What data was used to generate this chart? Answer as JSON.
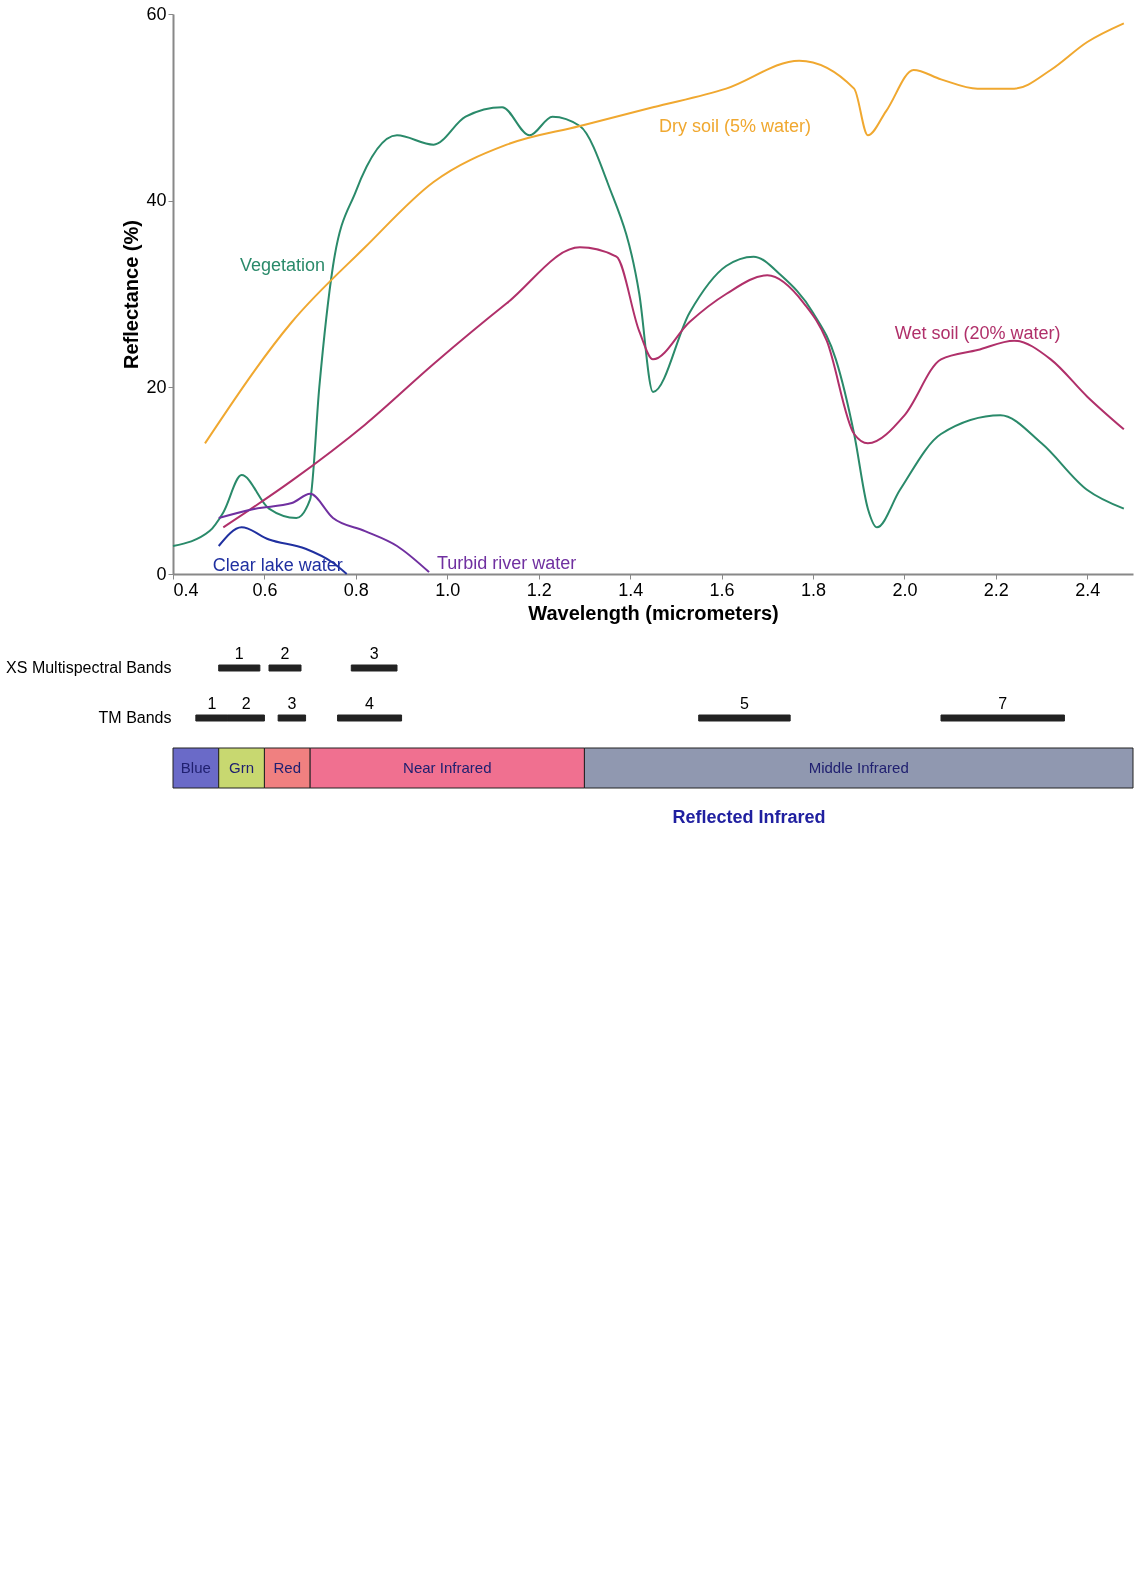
{
  "chart_data": [
    {
      "type": "line",
      "xlabel": "Wavelength (micrometers)",
      "ylabel": "Reflectance (%)",
      "xlim": [
        0.4,
        2.5
      ],
      "ylim": [
        0,
        60
      ],
      "xticks": [
        0.4,
        0.6,
        0.8,
        {
          "value": 1.0,
          "label": "1.0"
        },
        1.2,
        1.4,
        1.6,
        1.8,
        {
          "value": 2.0,
          "label": "2.0"
        },
        2.2,
        2.4
      ],
      "yticks": [
        0,
        20,
        40,
        60
      ],
      "grid": false,
      "series": [
        {
          "name": "Vegetation",
          "color": "#2a8a6a",
          "x": [
            0.4,
            0.48,
            0.51,
            0.55,
            0.61,
            0.67,
            0.7,
            0.72,
            0.75,
            0.8,
            0.89,
            0.97,
            1.04,
            1.12,
            1.18,
            1.23,
            1.29,
            1.35,
            1.42,
            1.45,
            1.53,
            1.61,
            1.67,
            1.73,
            1.8,
            1.85,
            1.89,
            1.92,
            1.94,
            1.99,
            2.08,
            2.21,
            2.3,
            2.4,
            2.48
          ],
          "values": [
            3,
            4.6,
            6.6,
            10.6,
            7,
            6,
            8,
            20,
            33,
            41,
            47,
            46,
            49,
            50,
            47,
            49,
            48,
            42,
            30,
            19.5,
            28,
            33,
            34,
            32,
            28,
            23,
            15,
            7,
            5,
            9,
            15,
            17,
            14,
            9,
            7
          ]
        },
        {
          "name": "Dry soil (5% water)",
          "color": "#f0a830",
          "x": [
            0.47,
            0.66,
            0.82,
            0.97,
            1.13,
            1.29,
            1.45,
            1.61,
            1.77,
            1.89,
            1.92,
            1.96,
            2.02,
            2.08,
            2.16,
            2.24,
            2.32,
            2.4,
            2.48
          ],
          "values": [
            14,
            27,
            35,
            42,
            46,
            48,
            50,
            52,
            55,
            52,
            47,
            49.6,
            54,
            53,
            52,
            52,
            54,
            57,
            59
          ]
        },
        {
          "name": "Wet soil (20% water)",
          "color": "#b0306a",
          "x": [
            0.51,
            0.66,
            0.82,
            0.97,
            1.13,
            1.29,
            1.37,
            1.42,
            1.45,
            1.53,
            1.61,
            1.7,
            1.78,
            1.83,
            1.89,
            1.92,
            2.0,
            2.08,
            2.16,
            2.24,
            2.32,
            2.4,
            2.48
          ],
          "values": [
            5,
            10,
            16,
            22.5,
            29,
            35,
            34,
            26,
            23,
            27,
            30,
            32,
            29,
            25,
            15,
            14,
            17,
            23,
            24,
            25,
            23,
            19,
            15.5
          ]
        },
        {
          "name": "Turbid river water",
          "color": "#7030a0",
          "x": [
            0.5,
            0.58,
            0.66,
            0.7,
            0.75,
            0.82,
            0.89,
            0.96
          ],
          "values": [
            6,
            7,
            7.6,
            8.6,
            6,
            4.6,
            3,
            0.2
          ]
        },
        {
          "name": "Clear lake water",
          "color": "#2030a0",
          "x": [
            0.5,
            0.55,
            0.61,
            0.69,
            0.75,
            0.78
          ],
          "values": [
            3,
            5,
            3.7,
            2.7,
            1.2,
            0
          ]
        }
      ]
    },
    {
      "type": "bar",
      "orientation": "horizontal",
      "categories": [
        "XS Multispectral Bands",
        "TM Bands",
        null
      ],
      "xlim": [
        0.4,
        2.5
      ],
      "tick_labels": "y",
      "series": [
        {
          "name": "1",
          "color": "#222222",
          "base": [
            0.5,
            null,
            null
          ],
          "values": [
            0.09,
            null,
            null
          ]
        },
        {
          "name": "2",
          "color": "#222222",
          "base": [
            0.61,
            null,
            null
          ],
          "values": [
            0.07,
            null,
            null
          ]
        },
        {
          "name": "3",
          "color": "#222222",
          "base": [
            0.79,
            null,
            null
          ],
          "values": [
            0.1,
            null,
            null
          ]
        },
        {
          "name": "1",
          "color": "#222222",
          "base": [
            null,
            0.45,
            null
          ],
          "values": [
            null,
            0.07,
            null
          ]
        },
        {
          "name": "2",
          "color": "#222222",
          "base": [
            null,
            0.52,
            null
          ],
          "values": [
            null,
            0.08,
            null
          ]
        },
        {
          "name": "3",
          "color": "#222222",
          "base": [
            null,
            0.63,
            null
          ],
          "values": [
            null,
            0.06,
            null
          ]
        },
        {
          "name": "4",
          "color": "#222222",
          "base": [
            null,
            0.76,
            null
          ],
          "values": [
            null,
            0.14,
            null
          ]
        },
        {
          "name": "5",
          "color": "#222222",
          "base": [
            null,
            1.55,
            null
          ],
          "values": [
            null,
            0.2,
            null
          ]
        },
        {
          "name": "7",
          "color": "#222222",
          "base": [
            null,
            2.08,
            null
          ],
          "values": [
            null,
            0.27,
            null
          ]
        },
        {
          "name": "Blue",
          "color": "#6a6ac8",
          "base": [
            null,
            null,
            0.4
          ],
          "values": [
            null,
            null,
            0.1
          ]
        },
        {
          "name": "Grn",
          "color": "#c8d870",
          "base": [
            null,
            null,
            0.5
          ],
          "values": [
            null,
            null,
            0.1
          ]
        },
        {
          "name": "Red",
          "color": "#f08080",
          "base": [
            null,
            null,
            0.6
          ],
          "values": [
            null,
            null,
            0.1
          ]
        },
        {
          "name": "Near Infrared",
          "color": "#f07090",
          "base": [
            null,
            null,
            0.7
          ],
          "values": [
            null,
            null,
            0.6
          ]
        },
        {
          "name": "Middle Infrared",
          "color": "#9098b0",
          "base": [
            null,
            null,
            1.3
          ],
          "values": [
            null,
            null,
            1.2
          ]
        }
      ],
      "annotations": [
        "Reflected Infrared"
      ]
    }
  ]
}
